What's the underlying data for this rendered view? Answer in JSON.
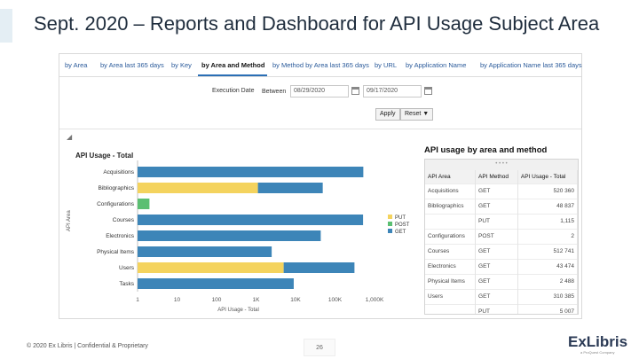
{
  "slide": {
    "title": "Sept. 2020 – Reports and Dashboard for API Usage Subject Area",
    "footer": "© 2020 Ex Libris | Confidential & Proprietary",
    "page_number": "26",
    "logo_text": "ExLibris",
    "logo_sub": "a ProQuest Company"
  },
  "tabs": [
    {
      "label": "by Area",
      "active": false
    },
    {
      "label": "by Area last 365 days",
      "active": false
    },
    {
      "label": "by Key",
      "active": false
    },
    {
      "label": "by Area and Method",
      "active": true
    },
    {
      "label": "by Method by Area last 365 days",
      "active": false
    },
    {
      "label": "by URL",
      "active": false
    },
    {
      "label": "by Application Name",
      "active": false
    },
    {
      "label": "by Application Name last 365 days",
      "active": false
    }
  ],
  "prompt": {
    "label": "Execution Date",
    "between": "Between",
    "from_date": "08/29/2020",
    "to_date": "09/17/2020",
    "apply_label": "Apply",
    "reset_label": "Reset ▼"
  },
  "chart_data": {
    "type": "bar",
    "orientation": "horizontal",
    "title": "API Usage - Total",
    "xlabel": "API Usage - Total",
    "ylabel": "API Area",
    "x_scale": "log",
    "xlim": [
      1,
      1000000
    ],
    "x_ticks": [
      "1",
      "10",
      "100",
      "1K",
      "10K",
      "100K",
      "1,000K"
    ],
    "categories": [
      "Acquisitions",
      "Bibliographics",
      "Configurations",
      "Courses",
      "Electronics",
      "Physical Items",
      "Users",
      "Tasks"
    ],
    "series": [
      {
        "name": "PUT",
        "color": "#f4d35e",
        "values": [
          0,
          1115,
          0,
          0,
          0,
          0,
          5007,
          0
        ]
      },
      {
        "name": "POST",
        "color": "#5bbf72",
        "values": [
          0,
          0,
          2,
          0,
          0,
          0,
          0,
          0
        ]
      },
      {
        "name": "GET",
        "color": "#3d85b8",
        "values": [
          520360,
          48837,
          0,
          512741,
          43474,
          2488,
          310385,
          9000
        ]
      }
    ],
    "legend": "right"
  },
  "table": {
    "title": "API usage by area and method",
    "handle": "• • • •",
    "headers": [
      "API Area",
      "API Method",
      "API Usage - Total"
    ],
    "rows": [
      [
        "Acquisitions",
        "GET",
        "520 360"
      ],
      [
        "Bibliographics",
        "GET",
        "48 837"
      ],
      [
        "",
        "PUT",
        "1,115"
      ],
      [
        "Configurations",
        "POST",
        "2"
      ],
      [
        "Courses",
        "GET",
        "512 741"
      ],
      [
        "Electronics",
        "GET",
        "43 474"
      ],
      [
        "Physical Items",
        "GET",
        "2 488"
      ],
      [
        "Users",
        "GET",
        "310 385"
      ],
      [
        "",
        "PUT",
        "5 007"
      ]
    ]
  }
}
